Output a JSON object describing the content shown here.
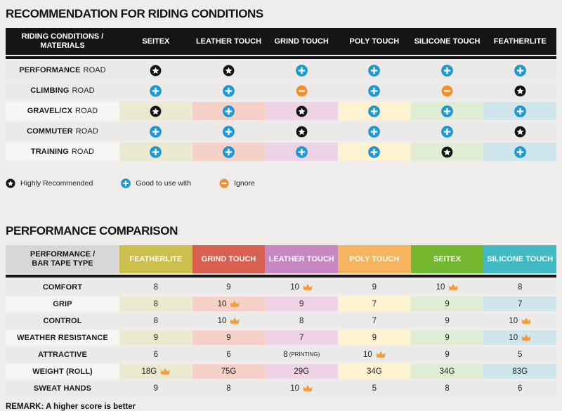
{
  "colors": {
    "page_bg": "#efedec",
    "header1_bg": "#151515",
    "row_gray": "#ebeae9",
    "row_label_light": "#f7f6f5",
    "pastels": [
      "#ebe9cf",
      "#f5d1c7",
      "#ecd3e6",
      "#fdf3d1",
      "#deedd3",
      "#cfe7ec"
    ],
    "icon_star_bg": "#141414",
    "icon_plus_bg": "#1b9cd8",
    "icon_minus_bg": "#f0912d",
    "crown": "#f49a38",
    "header2_label_bg": "#d8d7d6"
  },
  "section1": {
    "title": "RECOMMENDATION FOR RIDING CONDITIONS",
    "header_line1": "RIDING CONDITIONS /",
    "header_line2": "MATERIALS",
    "columns": [
      "SEITEX",
      "LEATHER TOUCH",
      "GRIND TOUCH",
      "POLY TOUCH",
      "SILICONE TOUCH",
      "FEATHERLITE"
    ],
    "rows": [
      {
        "label_strong": "PERFORMANCE",
        "label_rest": "ROAD",
        "colored": false,
        "cells": [
          "star",
          "star",
          "plus",
          "plus",
          "plus",
          "plus"
        ]
      },
      {
        "label_strong": "CLIMBING",
        "label_rest": "ROAD",
        "colored": false,
        "cells": [
          "plus",
          "plus",
          "minus",
          "plus",
          "minus",
          "star"
        ]
      },
      {
        "label_strong": "GRAVEL/CX",
        "label_rest": "ROAD",
        "colored": true,
        "cells": [
          "star",
          "plus",
          "star",
          "plus",
          "plus",
          "plus"
        ]
      },
      {
        "label_strong": "COMMUTER",
        "label_rest": "ROAD",
        "colored": false,
        "cells": [
          "plus",
          "plus",
          "star",
          "plus",
          "plus",
          "star"
        ]
      },
      {
        "label_strong": "TRAINING",
        "label_rest": "ROAD",
        "colored": true,
        "cells": [
          "plus",
          "plus",
          "plus",
          "plus",
          "star",
          "plus"
        ]
      }
    ],
    "legend": [
      {
        "icon": "star",
        "label": "Highly Recommended"
      },
      {
        "icon": "plus",
        "label": "Good to use with"
      },
      {
        "icon": "minus",
        "label": "Ignore"
      }
    ]
  },
  "section2": {
    "title": "PERFORMANCE COMPARISON",
    "header_line1": "PERFORMANCE /",
    "header_line2": "BAR TAPE TYPE",
    "columns": [
      {
        "label": "FEATHERLITE",
        "color": "#cbbf4e"
      },
      {
        "label": "GRIND TOUCH",
        "color": "#d9604f"
      },
      {
        "label": "LEATHER TOUCH",
        "color": "#c787c1"
      },
      {
        "label": "POLY TOUCH",
        "color": "#f7b45e"
      },
      {
        "label": "SEITEX",
        "color": "#74b82f"
      },
      {
        "label": "SILICONE TOUCH",
        "color": "#41bac4"
      }
    ],
    "rows": [
      {
        "label": "COMFORT",
        "colored": false,
        "cells": [
          {
            "value": "8"
          },
          {
            "value": "9"
          },
          {
            "value": "10",
            "crown": true
          },
          {
            "value": "9"
          },
          {
            "value": "10",
            "crown": true
          },
          {
            "value": "8"
          }
        ]
      },
      {
        "label": "GRIP",
        "colored": true,
        "cells": [
          {
            "value": "8"
          },
          {
            "value": "10",
            "crown": true
          },
          {
            "value": "9"
          },
          {
            "value": "7"
          },
          {
            "value": "9"
          },
          {
            "value": "7"
          }
        ]
      },
      {
        "label": "CONTROL",
        "colored": false,
        "cells": [
          {
            "value": "8"
          },
          {
            "value": "10",
            "crown": true
          },
          {
            "value": "8"
          },
          {
            "value": "7"
          },
          {
            "value": "9"
          },
          {
            "value": "10",
            "crown": true
          }
        ]
      },
      {
        "label": "WEATHER RESISTANCE",
        "colored": true,
        "cells": [
          {
            "value": "9"
          },
          {
            "value": "9"
          },
          {
            "value": "7"
          },
          {
            "value": "9"
          },
          {
            "value": "9"
          },
          {
            "value": "10",
            "crown": true
          }
        ]
      },
      {
        "label": "ATTRACTIVE",
        "colored": false,
        "cells": [
          {
            "value": "6"
          },
          {
            "value": "6"
          },
          {
            "value": "8",
            "suffix": "(PRINTING)"
          },
          {
            "value": "10",
            "crown": true
          },
          {
            "value": "9"
          },
          {
            "value": "5"
          }
        ]
      },
      {
        "label": "WEIGHT (ROLL)",
        "colored": true,
        "cells": [
          {
            "value": "18G",
            "crown": true
          },
          {
            "value": "75G"
          },
          {
            "value": "29G"
          },
          {
            "value": "34G"
          },
          {
            "value": "34G"
          },
          {
            "value": "83G"
          }
        ]
      },
      {
        "label": "SWEAT HANDS",
        "colored": false,
        "cells": [
          {
            "value": "9"
          },
          {
            "value": "8"
          },
          {
            "value": "10",
            "crown": true
          },
          {
            "value": "5"
          },
          {
            "value": "8"
          },
          {
            "value": "6"
          }
        ]
      }
    ],
    "remark": "REMARK: A higher score is better"
  }
}
